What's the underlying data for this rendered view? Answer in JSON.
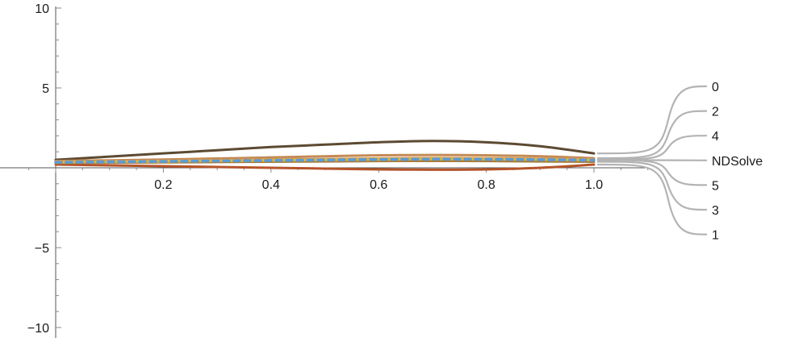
{
  "chart_data": {
    "type": "line",
    "title": "",
    "xlabel": "",
    "ylabel": "",
    "xlim": [
      0,
      1.0
    ],
    "ylim": [
      -10,
      10
    ],
    "x_ticks": [
      0.2,
      0.4,
      0.6,
      0.8,
      1.0
    ],
    "x_tick_labels": [
      "0.2",
      "0.4",
      "0.6",
      "0.8",
      "1.0"
    ],
    "y_ticks": [
      -10,
      -5,
      5,
      10
    ],
    "y_tick_labels": [
      "−10",
      "−5",
      "5",
      "10"
    ],
    "grid": false,
    "legend": "right, callout labels",
    "x": [
      0,
      0.1,
      0.2,
      0.3,
      0.4,
      0.5,
      0.6,
      0.7,
      0.8,
      0.9,
      1.0
    ],
    "series": [
      {
        "name": "0",
        "color": "#5c4a32",
        "dashed": false,
        "values": [
          0.5,
          0.7,
          0.9,
          1.1,
          1.3,
          1.45,
          1.6,
          1.68,
          1.6,
          1.35,
          0.9
        ]
      },
      {
        "name": "1",
        "color": "#b5542a",
        "dashed": false,
        "values": [
          0.2,
          0.15,
          0.1,
          0.05,
          0.0,
          -0.05,
          -0.1,
          -0.12,
          -0.1,
          0.0,
          0.2
        ]
      },
      {
        "name": "2",
        "color": "#c48a56",
        "dashed": false,
        "values": [
          0.42,
          0.47,
          0.52,
          0.58,
          0.65,
          0.72,
          0.78,
          0.8,
          0.78,
          0.72,
          0.6
        ]
      },
      {
        "name": "3",
        "color": "#a67c3c",
        "dashed": false,
        "values": [
          0.3,
          0.32,
          0.34,
          0.36,
          0.38,
          0.4,
          0.42,
          0.43,
          0.42,
          0.4,
          0.38
        ]
      },
      {
        "name": "4",
        "color": "#d6a050",
        "dashed": false,
        "values": [
          0.37,
          0.4,
          0.43,
          0.47,
          0.51,
          0.55,
          0.59,
          0.61,
          0.6,
          0.57,
          0.52
        ]
      },
      {
        "name": "5",
        "color": "#e8b830",
        "dashed": false,
        "values": [
          0.34,
          0.37,
          0.4,
          0.43,
          0.46,
          0.49,
          0.52,
          0.54,
          0.53,
          0.51,
          0.48
        ]
      },
      {
        "name": "NDSolve",
        "color": "#5b9bd5",
        "dashed": true,
        "values": [
          0.34,
          0.37,
          0.4,
          0.43,
          0.46,
          0.49,
          0.52,
          0.54,
          0.53,
          0.51,
          0.48
        ]
      }
    ],
    "labels": [
      "0",
      "2",
      "4",
      "NDSolve",
      "5",
      "3",
      "1"
    ]
  }
}
